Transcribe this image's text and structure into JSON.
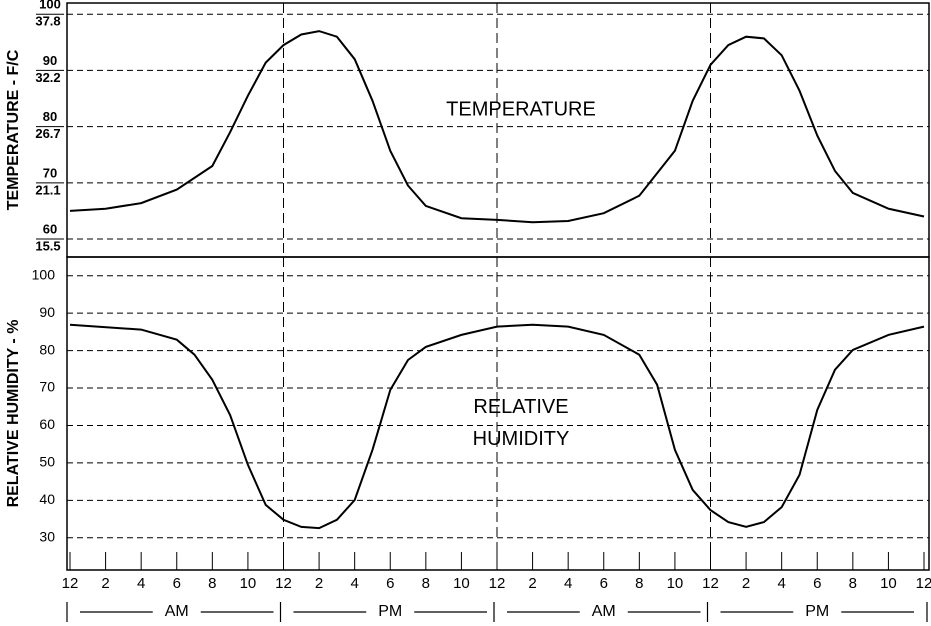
{
  "chart_data": [
    {
      "type": "line",
      "ylabel": "TEMPERATURE - F/C",
      "annotation_lines": [
        "TEMPERATURE"
      ],
      "color": "#000000",
      "x": [
        0,
        2,
        4,
        6,
        8,
        9,
        10,
        11,
        12,
        13,
        14,
        15,
        16,
        17,
        18,
        19,
        20,
        22,
        24,
        26,
        28,
        30,
        32,
        34,
        35,
        36,
        37,
        38,
        39,
        40,
        41,
        42,
        43,
        44,
        46,
        48
      ],
      "values": [
        65,
        65.4,
        66.4,
        68.8,
        73,
        79,
        85.5,
        91.4,
        94.5,
        96.4,
        97,
        96,
        92,
        84.6,
        75.7,
        69.5,
        65.9,
        63.7,
        63.4,
        63,
        63.2,
        64.6,
        67.7,
        75.7,
        84.6,
        91,
        94.5,
        96,
        95.7,
        92.7,
        86.4,
        78.4,
        72.1,
        68.2,
        65.4,
        64
      ],
      "xlim": [
        0,
        48
      ],
      "ylim": [
        56.8,
        102
      ],
      "yticks": [
        60,
        70,
        80,
        90,
        100
      ],
      "yticks_celsius": [
        15.5,
        21.1,
        26.7,
        32.2,
        37.8
      ],
      "xgrid": [
        12,
        24,
        36
      ],
      "grid": true
    },
    {
      "type": "line",
      "ylabel": "RELATIVE HUMIDITY - %",
      "annotation_lines": [
        "RELATIVE",
        "HUMIDITY"
      ],
      "color": "#000000",
      "x": [
        0,
        4,
        6,
        7,
        8,
        9,
        10,
        11,
        12,
        13,
        14,
        15,
        16,
        17,
        18,
        19,
        20,
        22,
        24,
        26,
        28,
        30,
        32,
        33,
        34,
        35,
        36,
        37,
        38,
        39,
        40,
        41,
        42,
        43,
        44,
        46,
        48
      ],
      "values": [
        86.9,
        85.6,
        82.9,
        78.9,
        72.2,
        62.8,
        49.5,
        38.8,
        34.8,
        32.9,
        32.6,
        34.8,
        40.1,
        53.5,
        69.5,
        77.5,
        81,
        84.2,
        86.4,
        86.9,
        86.4,
        84.2,
        78.9,
        70.9,
        53.5,
        42.8,
        37.4,
        34.2,
        32.9,
        34.2,
        38.2,
        46.8,
        64.2,
        74.9,
        80.2,
        84.2,
        86.4
      ],
      "xlim": [
        0,
        48
      ],
      "ylim": [
        21.4,
        105
      ],
      "yticks": [
        30,
        40,
        50,
        60,
        70,
        80,
        90,
        100
      ],
      "xgrid": [
        12,
        24,
        36
      ],
      "grid": true,
      "xticks": [
        {
          "value": 0,
          "label": "12"
        },
        {
          "value": 2,
          "label": "2"
        },
        {
          "value": 4,
          "label": "4"
        },
        {
          "value": 6,
          "label": "6"
        },
        {
          "value": 8,
          "label": "8"
        },
        {
          "value": 10,
          "label": "10"
        },
        {
          "value": 12,
          "label": "12"
        },
        {
          "value": 14,
          "label": "2"
        },
        {
          "value": 16,
          "label": "4"
        },
        {
          "value": 18,
          "label": "6"
        },
        {
          "value": 20,
          "label": "8"
        },
        {
          "value": 22,
          "label": "10"
        },
        {
          "value": 24,
          "label": "12"
        },
        {
          "value": 26,
          "label": "2"
        },
        {
          "value": 28,
          "label": "4"
        },
        {
          "value": 30,
          "label": "6"
        },
        {
          "value": 32,
          "label": "8"
        },
        {
          "value": 34,
          "label": "10"
        },
        {
          "value": 36,
          "label": "12"
        },
        {
          "value": 38,
          "label": "2"
        },
        {
          "value": 40,
          "label": "4"
        },
        {
          "value": 42,
          "label": "6"
        },
        {
          "value": 44,
          "label": "8"
        },
        {
          "value": 46,
          "label": "10"
        },
        {
          "value": 48,
          "label": "12"
        }
      ],
      "periods": [
        "AM",
        "PM",
        "AM",
        "PM"
      ]
    }
  ]
}
